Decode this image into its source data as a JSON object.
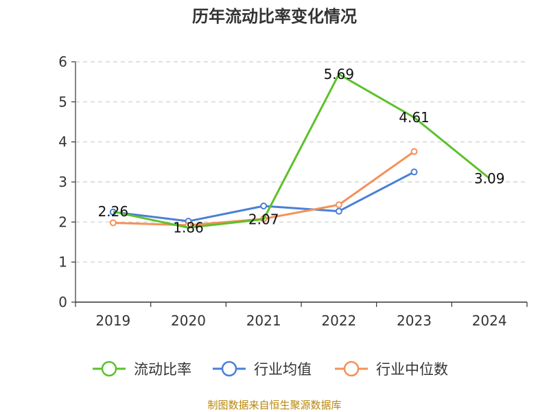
{
  "chart_data": {
    "type": "line",
    "title": "历年流动比率变化情况",
    "categories": [
      "2019",
      "2020",
      "2021",
      "2022",
      "2023",
      "2024"
    ],
    "ylim": [
      0,
      6
    ],
    "yticks": [
      "0",
      "1",
      "2",
      "3",
      "4",
      "5",
      "6"
    ],
    "grid": true,
    "series": [
      {
        "name": "流动比率",
        "color": "#5cc12a",
        "values": [
          2.26,
          1.86,
          2.07,
          5.69,
          4.61,
          3.09
        ],
        "labels": [
          "2.26",
          "1.86",
          "2.07",
          "5.69",
          "4.61",
          "3.09"
        ]
      },
      {
        "name": "行业均值",
        "color": "#4a7fd6",
        "values": [
          2.25,
          2.02,
          2.4,
          2.27,
          3.25,
          null
        ]
      },
      {
        "name": "行业中位数",
        "color": "#f5905a",
        "values": [
          1.98,
          1.92,
          2.08,
          2.43,
          3.76,
          null
        ]
      }
    ],
    "legend_position": "bottom"
  },
  "footer": {
    "source": "制图数据来自恒生聚源数据库"
  }
}
